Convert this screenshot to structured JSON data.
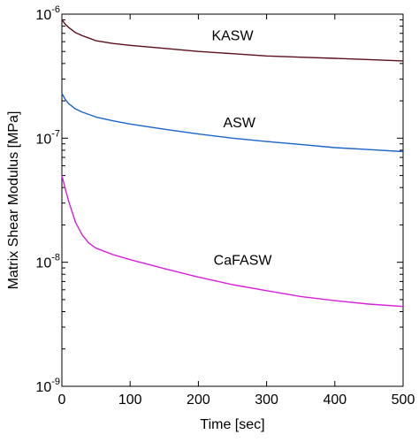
{
  "chart_data": {
    "type": "line",
    "title": "",
    "xlabel": "Time [sec]",
    "ylabel": "Matrix Shear Modulus [MPa]",
    "xlim": [
      0,
      500
    ],
    "ylim": [
      1e-09,
      1e-06
    ],
    "yscale": "log",
    "grid": false,
    "legend": "none (series labeled inline)",
    "x_ticks": [
      "0",
      "100",
      "200",
      "300",
      "400",
      "500"
    ],
    "y_ticks": [
      {
        "base": "10",
        "exp": "-9",
        "value": 1e-09
      },
      {
        "base": "10",
        "exp": "-8",
        "value": 1e-08
      },
      {
        "base": "10",
        "exp": "-7",
        "value": 1e-07
      },
      {
        "base": "10",
        "exp": "-6",
        "value": 1e-06
      }
    ],
    "series": [
      {
        "name": "KASW",
        "color": "#5a0f1a",
        "label_at": [
          250,
          6.8e-07
        ],
        "points": [
          [
            0,
            9e-07
          ],
          [
            5,
            8.3e-07
          ],
          [
            10,
            7.8e-07
          ],
          [
            20,
            7.1e-07
          ],
          [
            30,
            6.7e-07
          ],
          [
            40,
            6.4e-07
          ],
          [
            50,
            6.1e-07
          ],
          [
            75,
            5.8e-07
          ],
          [
            100,
            5.6e-07
          ],
          [
            150,
            5.3e-07
          ],
          [
            200,
            5e-07
          ],
          [
            250,
            4.8e-07
          ],
          [
            300,
            4.6e-07
          ],
          [
            350,
            4.5e-07
          ],
          [
            400,
            4.4e-07
          ],
          [
            450,
            4.3e-07
          ],
          [
            500,
            4.2e-07
          ]
        ]
      },
      {
        "name": "ASW",
        "color": "#1a64c8",
        "label_at": [
          260,
          1.35e-07
        ],
        "points": [
          [
            0,
            2.3e-07
          ],
          [
            5,
            2.05e-07
          ],
          [
            10,
            1.9e-07
          ],
          [
            20,
            1.72e-07
          ],
          [
            30,
            1.62e-07
          ],
          [
            40,
            1.55e-07
          ],
          [
            50,
            1.48e-07
          ],
          [
            75,
            1.38e-07
          ],
          [
            100,
            1.3e-07
          ],
          [
            150,
            1.18e-07
          ],
          [
            200,
            1.08e-07
          ],
          [
            250,
            1e-07
          ],
          [
            300,
            9.4e-08
          ],
          [
            350,
            8.9e-08
          ],
          [
            400,
            8.4e-08
          ],
          [
            450,
            8.1e-08
          ],
          [
            500,
            7.8e-08
          ]
        ]
      },
      {
        "name": "CaFASW",
        "color": "#d81fd8",
        "label_at": [
          265,
          1.05e-08
        ],
        "points": [
          [
            0,
            5e-08
          ],
          [
            5,
            3.9e-08
          ],
          [
            10,
            3.1e-08
          ],
          [
            15,
            2.55e-08
          ],
          [
            20,
            2.1e-08
          ],
          [
            30,
            1.65e-08
          ],
          [
            40,
            1.42e-08
          ],
          [
            50,
            1.3e-08
          ],
          [
            75,
            1.15e-08
          ],
          [
            100,
            1.05e-08
          ],
          [
            150,
            8.9e-09
          ],
          [
            200,
            7.6e-09
          ],
          [
            250,
            6.6e-09
          ],
          [
            300,
            5.9e-09
          ],
          [
            350,
            5.3e-09
          ],
          [
            400,
            4.9e-09
          ],
          [
            450,
            4.6e-09
          ],
          [
            500,
            4.4e-09
          ]
        ]
      }
    ]
  }
}
